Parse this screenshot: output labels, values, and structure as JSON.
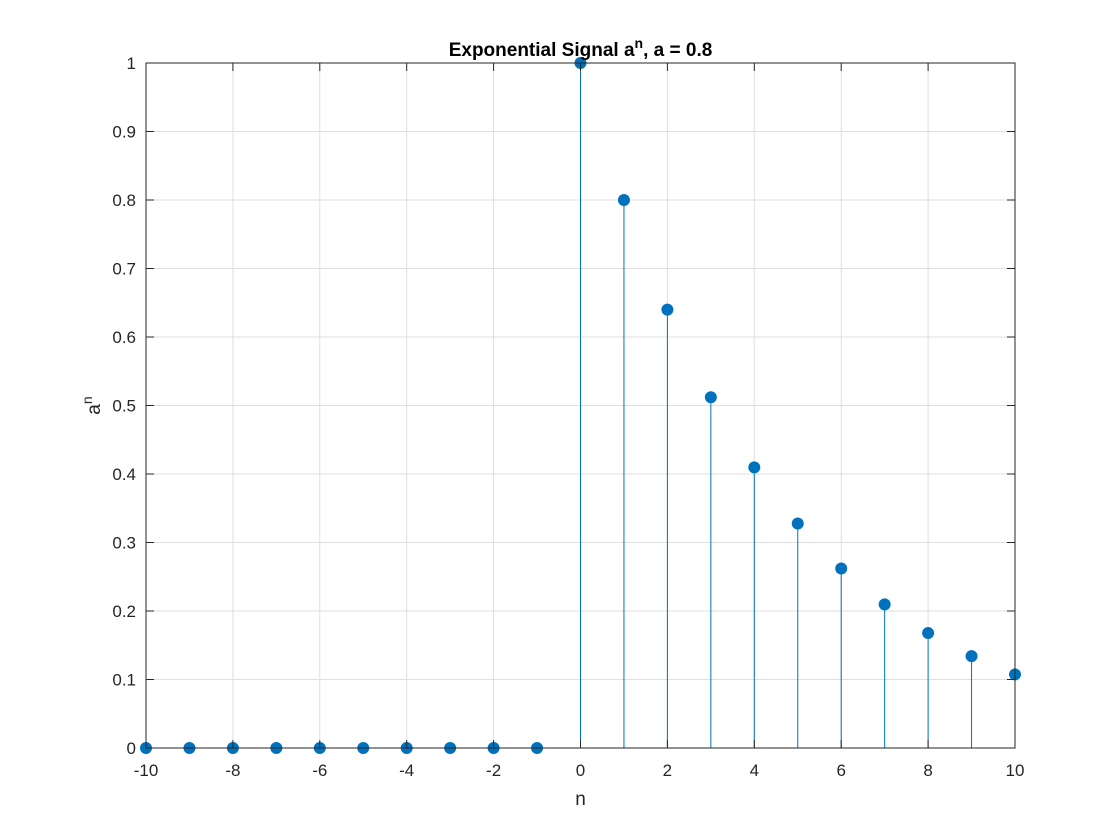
{
  "chart_data": {
    "type": "stem",
    "title": {
      "prefix": "Exponential Signal a",
      "superscript": "n",
      "suffix": ", a = 0.8"
    },
    "xlabel": "n",
    "ylabel": {
      "base": "a",
      "superscript": "n"
    },
    "xlim": [
      -10,
      10
    ],
    "ylim": [
      0,
      1
    ],
    "grid": true,
    "x_ticks": [
      -10,
      -8,
      -6,
      -4,
      -2,
      0,
      2,
      4,
      6,
      8,
      10
    ],
    "y_ticks": [
      0,
      0.1,
      0.2,
      0.3,
      0.4,
      0.5,
      0.6,
      0.7,
      0.8,
      0.9,
      1
    ],
    "series": [
      {
        "color": "#0072BD",
        "x": [
          -10,
          -9,
          -8,
          -7,
          -6,
          -5,
          -4,
          -3,
          -2,
          -1,
          0,
          1,
          2,
          3,
          4,
          5,
          6,
          7,
          8,
          9,
          10
        ],
        "y": [
          0,
          0,
          0,
          0,
          0,
          0,
          0,
          0,
          0,
          0,
          1,
          0.8,
          0.64,
          0.512,
          0.4096,
          0.3277,
          0.2621,
          0.2097,
          0.1678,
          0.1342,
          0.1074
        ]
      }
    ]
  }
}
